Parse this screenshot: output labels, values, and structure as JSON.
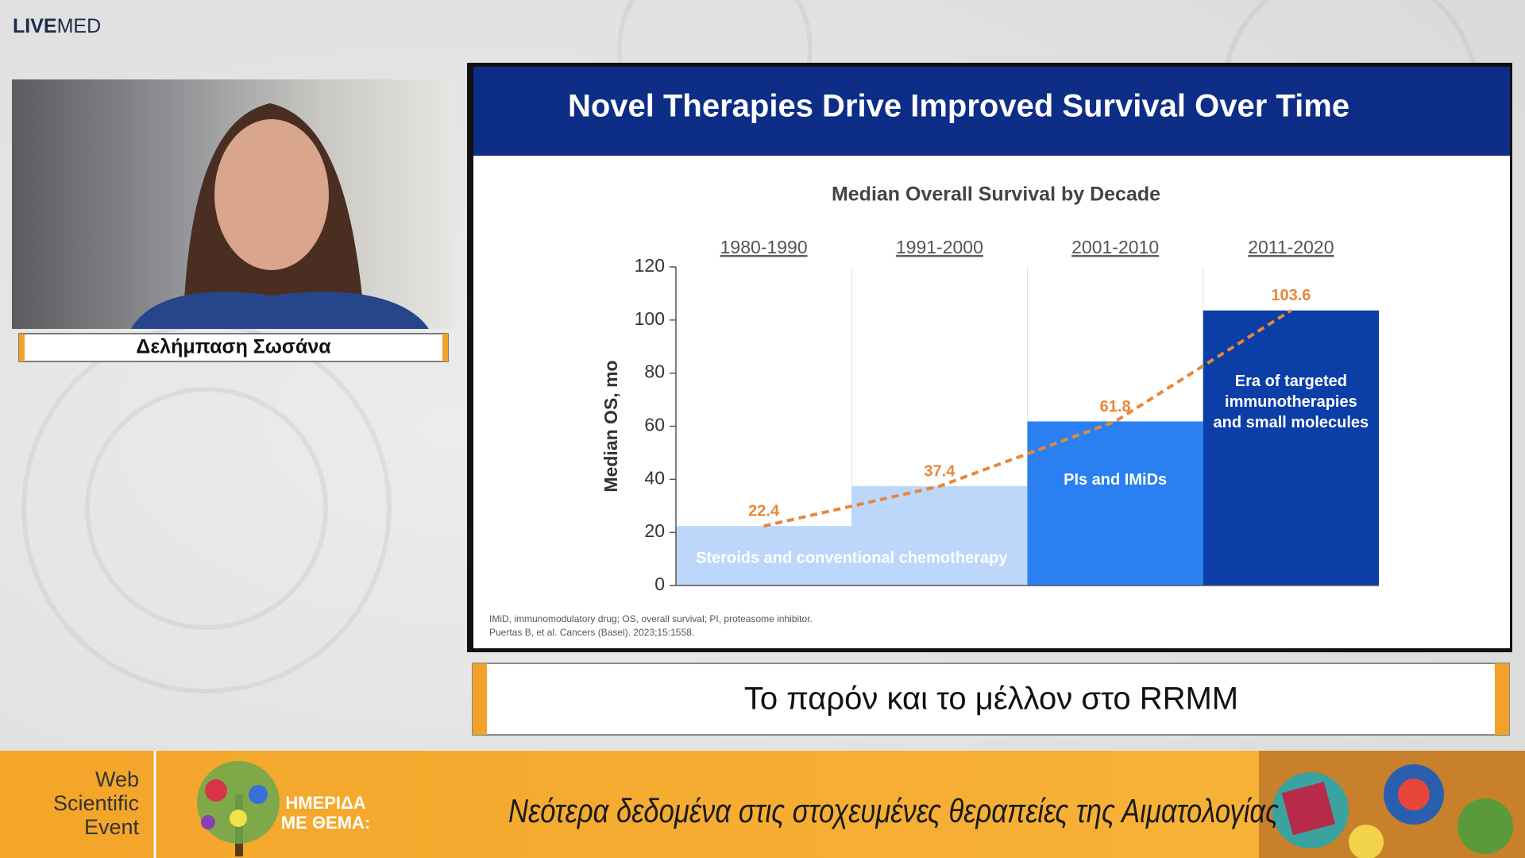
{
  "header": {
    "logo_bold": "LIVE",
    "logo_light": "MED"
  },
  "speaker": {
    "name": "Δελήμπαση Σωσάνα"
  },
  "slide": {
    "title": "Novel Therapies Drive Improved Survival Over Time",
    "footnotes": [
      "IMiD, immunomodulatory drug; OS, overall survival; PI, proteasome inhibitor.",
      "Puertas B, et al. Cancers (Basel). 2023;15:1558."
    ]
  },
  "chart_data": {
    "type": "bar",
    "title": "Median Overall Survival by Decade",
    "categories": [
      "1980-1990",
      "1991-2000",
      "2001-2010",
      "2011-2020"
    ],
    "values": [
      22.4,
      37.4,
      61.8,
      103.6
    ],
    "colors": [
      "#bcd7fa",
      "#bcd7fa",
      "#2a80f0",
      "#0b3ea6"
    ],
    "value_label_color": "#e8873a",
    "trend_line": true,
    "ylabel": "Median OS, mo",
    "ylim": [
      0,
      120
    ],
    "yticks": [
      0,
      20,
      40,
      60,
      80,
      100,
      120
    ],
    "annotations": [
      [
        "Steroids and conventional chemotherapy"
      ],
      [
        "PIs and IMiDs"
      ],
      [
        "Era of targeted",
        "immunotherapies",
        "and small molecules"
      ]
    ]
  },
  "caption": "Το παρόν και το μέλλον στο RRMM",
  "banner": {
    "event": [
      "Web",
      "Scientific",
      "Event"
    ],
    "label": [
      "ΗΜΕΡΙΔΑ",
      "ΜΕ ΘΕΜΑ:"
    ],
    "theme": "Νεότερα δεδομένα στις στοχευμένες θεραπείες της Αιματολογίας"
  }
}
